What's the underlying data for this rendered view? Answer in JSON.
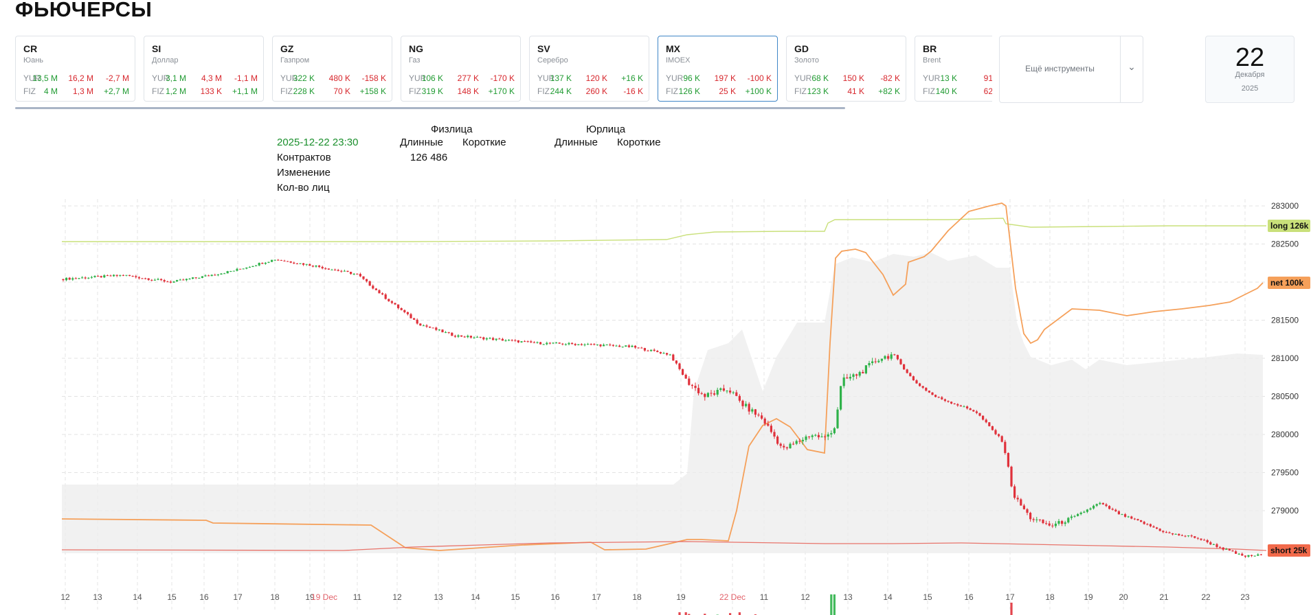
{
  "page": {
    "title": "ФЬЮЧЕРСЫ"
  },
  "cards": [
    {
      "ticker": "CR",
      "name": "Юань",
      "yur": {
        "label": "YUR",
        "a": "13,5 M",
        "b": "16,2 M",
        "c": "-2,7 M"
      },
      "fiz": {
        "label": "FIZ",
        "a": "4 M",
        "b": "1,3 M",
        "c": "+2,7 M"
      }
    },
    {
      "ticker": "SI",
      "name": "Доллар",
      "yur": {
        "label": "YUR",
        "a": "3,1 M",
        "b": "4,3 M",
        "c": "-1,1 M"
      },
      "fiz": {
        "label": "FIZ",
        "a": "1,2 M",
        "b": "133 K",
        "c": "+1,1 M"
      }
    },
    {
      "ticker": "GZ",
      "name": "Газпром",
      "yur": {
        "label": "YUR",
        "a": "322 K",
        "b": "480 K",
        "c": "-158 K"
      },
      "fiz": {
        "label": "FIZ",
        "a": "228 K",
        "b": "70 K",
        "c": "+158 K"
      }
    },
    {
      "ticker": "NG",
      "name": "Газ",
      "yur": {
        "label": "YUR",
        "a": "106 K",
        "b": "277 K",
        "c": "-170 K"
      },
      "fiz": {
        "label": "FIZ",
        "a": "319 K",
        "b": "148 K",
        "c": "+170 K"
      }
    },
    {
      "ticker": "SV",
      "name": "Серебро",
      "yur": {
        "label": "YUR",
        "a": "137 K",
        "b": "120 K",
        "c": "+16 K"
      },
      "fiz": {
        "label": "FIZ",
        "a": "244 K",
        "b": "260 K",
        "c": "-16 K"
      }
    },
    {
      "ticker": "MX",
      "name": "IMOEX",
      "yur": {
        "label": "YUR",
        "a": "96 K",
        "b": "197 K",
        "c": "-100 K"
      },
      "fiz": {
        "label": "FIZ",
        "a": "126 K",
        "b": "25 K",
        "c": "+100 K"
      }
    },
    {
      "ticker": "GD",
      "name": "Золото",
      "yur": {
        "label": "YUR",
        "a": "68 K",
        "b": "150 K",
        "c": "-82 K"
      },
      "fiz": {
        "label": "FIZ",
        "a": "123 K",
        "b": "41 K",
        "c": "+82 K"
      }
    },
    {
      "ticker": "BR",
      "name": "Brent",
      "yur": {
        "label": "YUR",
        "a": "13 K",
        "b": "91",
        "c": ""
      },
      "fiz": {
        "label": "FIZ",
        "a": "140 K",
        "b": "62",
        "c": ""
      }
    }
  ],
  "more_instruments": {
    "label": "Ещё инструменты"
  },
  "date": {
    "day": "22",
    "month": "Декабря",
    "year": "2025"
  },
  "legend": {
    "timestamp": "2025-12-22 23:30",
    "rows": [
      "Контрактов",
      "Изменение",
      "Кол-во лиц"
    ],
    "fiz_header": "Физлица",
    "yur_header": "Юрлица",
    "long": "Длинные",
    "short": "Короткие",
    "fiz_long_contracts": "126 486"
  },
  "colors": {
    "candle_up": "#2fb24a",
    "candle_down": "#e0313b",
    "long_line": "#c9e07a",
    "net_line": "#f5a05a",
    "short_line": "#e8736a",
    "band_fill": "#ececec"
  },
  "chart_data": {
    "type": "candlestick",
    "y_ticks": [
      "283000",
      "282500",
      "282000",
      "281500",
      "281000",
      "280500",
      "280000",
      "279500",
      "279000"
    ],
    "x_ticks": [
      "12",
      "13",
      "14",
      "15",
      "16",
      "17",
      "18",
      "19",
      "19 Dec",
      "11",
      "12",
      "13",
      "14",
      "15",
      "16",
      "17",
      "18",
      "19",
      "22 Dec",
      "11",
      "12",
      "13",
      "14",
      "15",
      "16",
      "17",
      "18",
      "19",
      "20",
      "21",
      "22",
      "23"
    ],
    "x_ticks_highlight": [
      "19 Dec",
      "22 Dec"
    ],
    "series_labels": {
      "long": "long 126k",
      "net": "net 100k",
      "short": "short 25k"
    }
  }
}
